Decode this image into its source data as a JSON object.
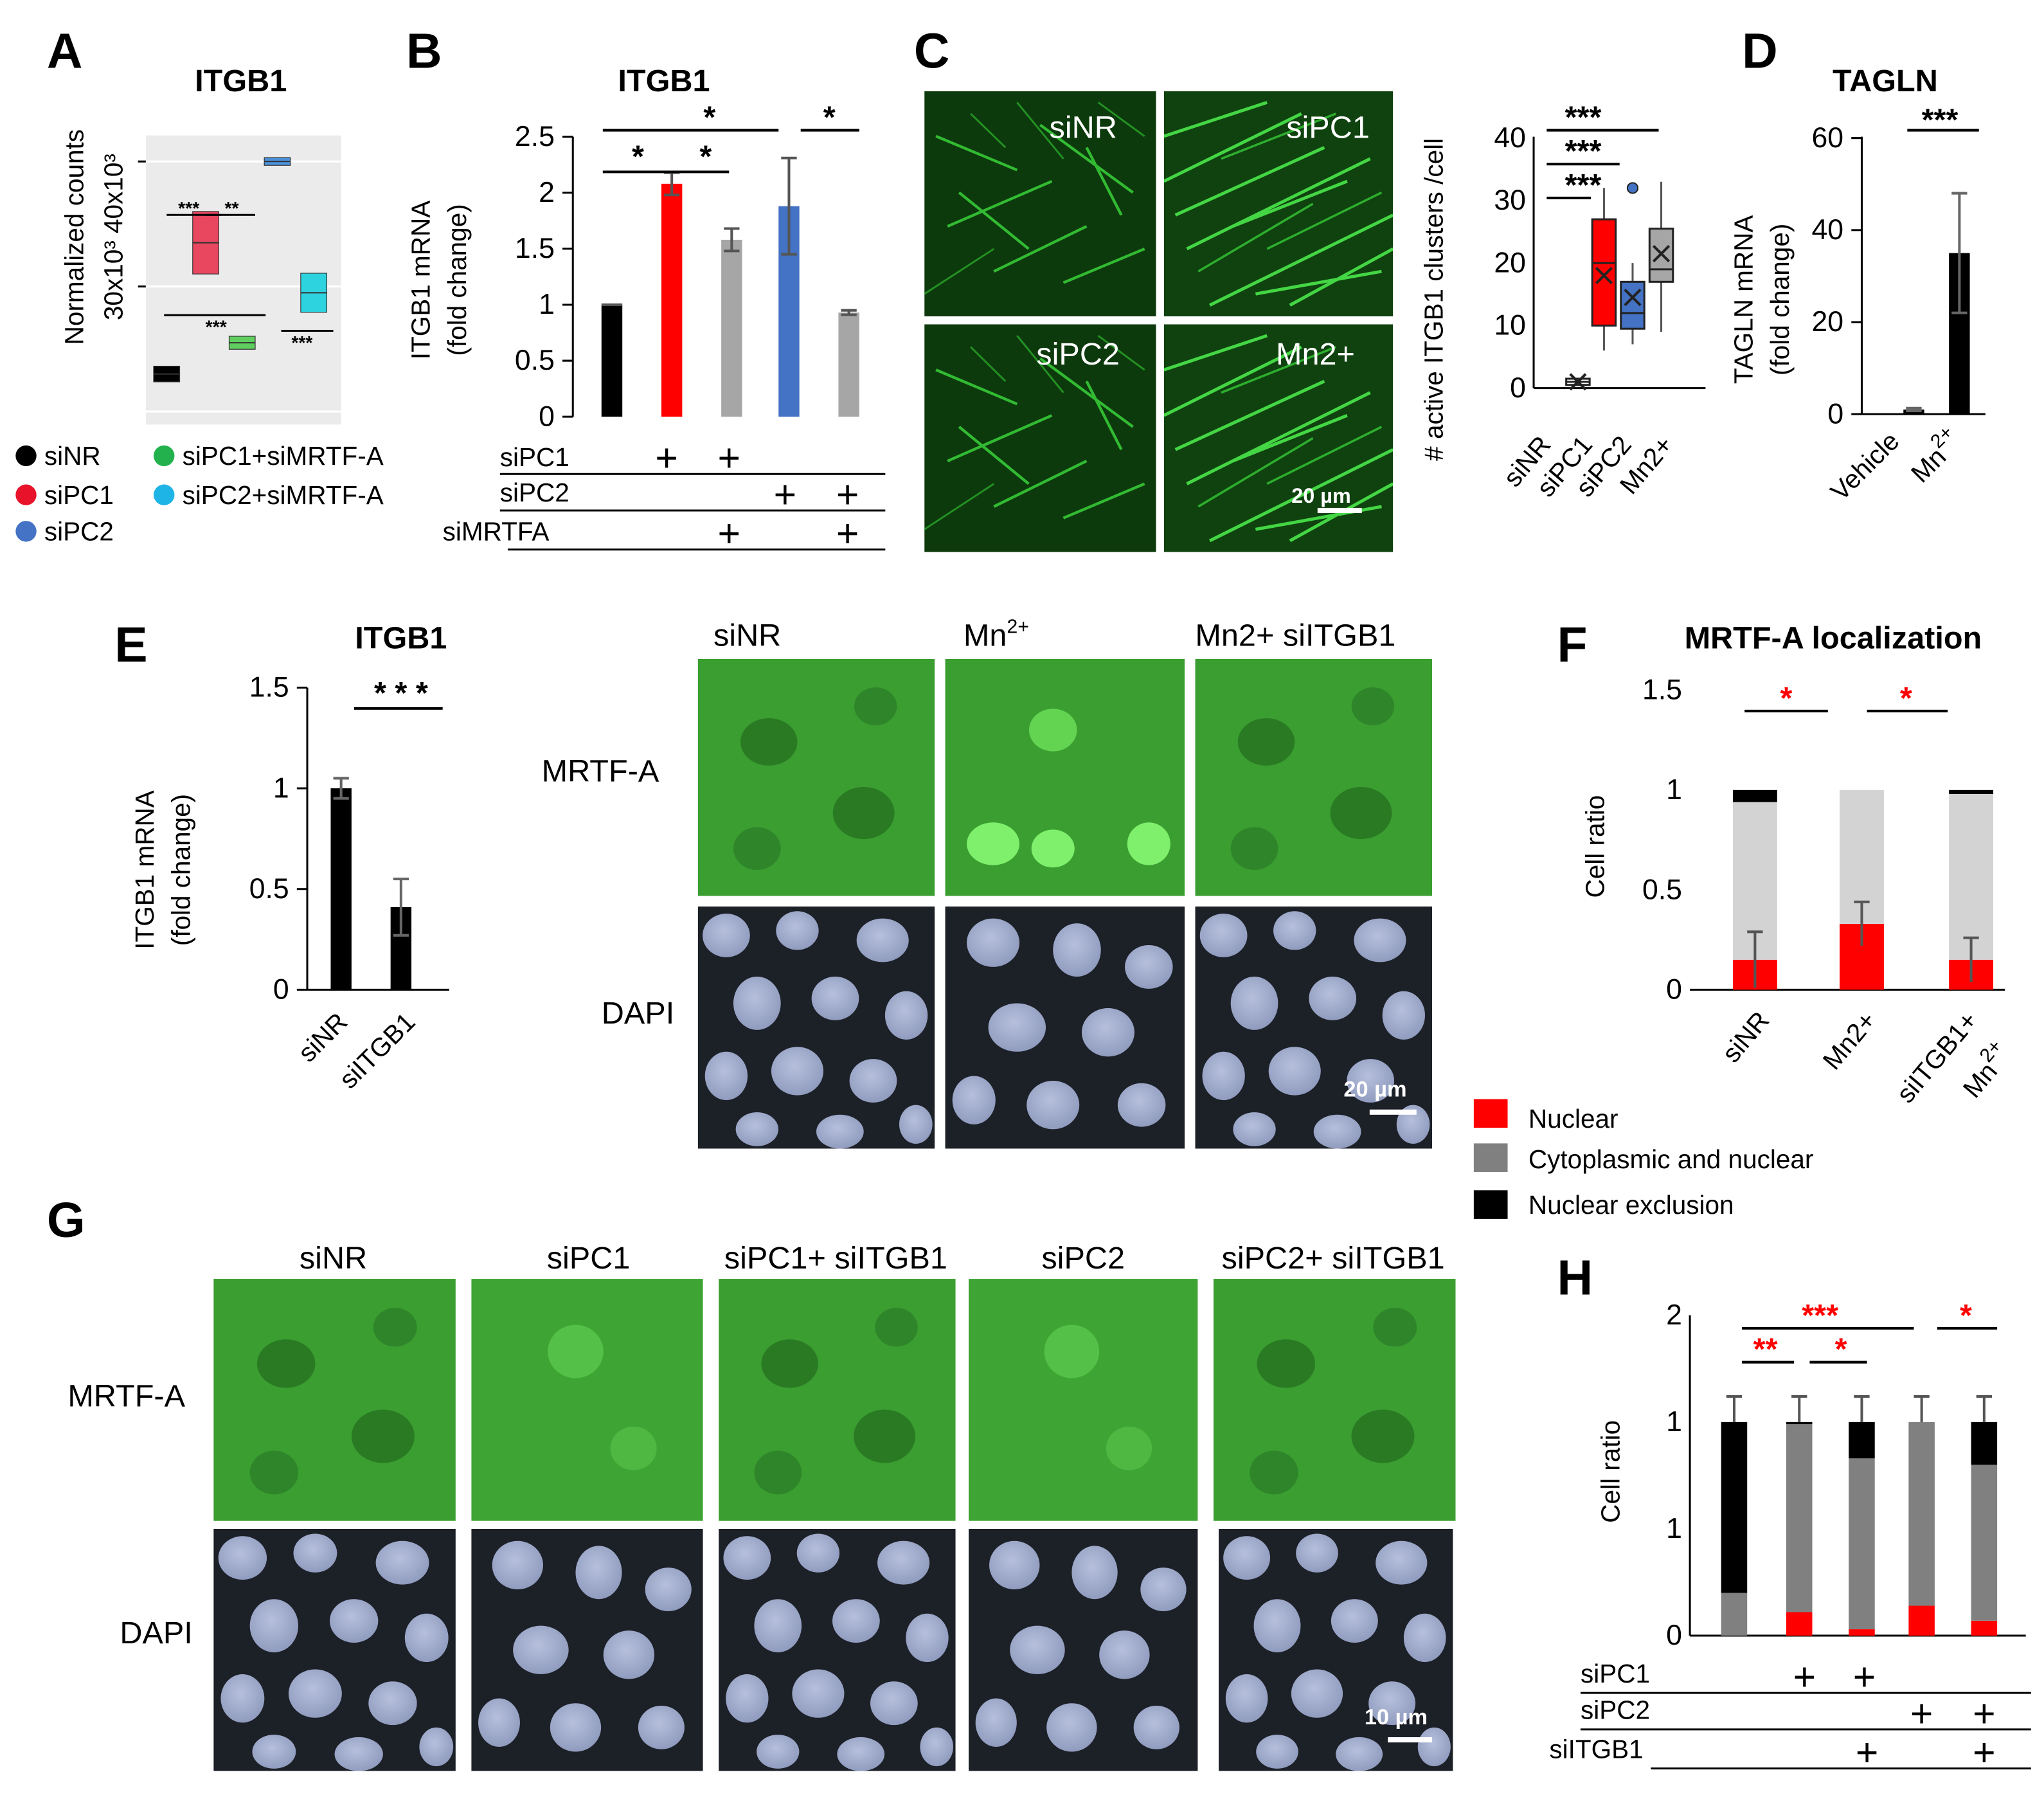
{
  "panel_labels": {
    "a": "A",
    "b": "B",
    "c": "C",
    "d": "D",
    "e": "E",
    "f": "F",
    "g": "G",
    "h": "H"
  },
  "panelA": {
    "title": "ITGB1",
    "ylabel_line1": "Normalized counts",
    "ylabel_line2": "30x10³ 40x10³",
    "stars": [
      "***",
      "**",
      "***",
      "***"
    ],
    "legend": [
      {
        "label": "siNR",
        "color": "#000000"
      },
      {
        "label": "siPC1",
        "color": "#e8132a"
      },
      {
        "label": "siPC2",
        "color": "#4472c4"
      },
      {
        "label": "siPC1+siMRTF-A",
        "color": "#22b14c"
      },
      {
        "label": "siPC2+siMRTF-A",
        "color": "#1fb4e6"
      }
    ]
  },
  "panelB": {
    "title": "ITGB1",
    "ylabel_line1": "ITGB1 mRNA",
    "ylabel_line2": "(fold change)",
    "ticks": [
      "0",
      "0.5",
      "1",
      "1.5",
      "2",
      "2.5"
    ],
    "stars": [
      "*",
      "*",
      "*",
      "*"
    ],
    "rows": [
      "siPC1",
      "siPC2",
      "siMRTFA"
    ],
    "plus": "+"
  },
  "panelC": {
    "images": [
      "siNR",
      "siPC1",
      "siPC2",
      "Mn2+"
    ],
    "scale": "20 µm",
    "ylabel": "# active ITGB1 clusters /cell",
    "ticks": [
      "0",
      "10",
      "20",
      "30",
      "40"
    ],
    "stars": [
      "***",
      "***",
      "***"
    ],
    "categories": [
      "siNR",
      "siPC1",
      "siPC2",
      "Mn2+"
    ]
  },
  "panelD": {
    "title": "TAGLN",
    "ylabel_line1": "TAGLN mRNA",
    "ylabel_line2": "(fold change)",
    "ticks": [
      "0",
      "20",
      "40",
      "60"
    ],
    "star": "***",
    "categories": [
      "Vehicle",
      "Mn"
    ],
    "superscript": "2+"
  },
  "panelE": {
    "title": "ITGB1",
    "ylabel_line1": "ITGB1 mRNA",
    "ylabel_line2": "(fold change)",
    "ticks": [
      "0",
      "0.5",
      "1",
      "1.5"
    ],
    "star": "* * *",
    "categories": [
      "siNR",
      "siITGB1"
    ],
    "col_headers": [
      "siNR",
      "Mn",
      "Mn2+ siITGB1"
    ],
    "superscript": "2+",
    "row_labels": [
      "MRTF-A",
      "DAPI"
    ],
    "scale": "20 µm"
  },
  "panelF": {
    "title": "MRTF-A localization",
    "ylabel": "Cell ratio",
    "ticks": [
      "0",
      "0.5",
      "1",
      "1.5"
    ],
    "stars": [
      "*",
      "*"
    ],
    "categories": [
      "siNR",
      "Mn2+",
      "siITGB1+",
      "Mn"
    ],
    "superscript": "2+",
    "legend": [
      {
        "label": "Nuclear",
        "color": "#ff0000"
      },
      {
        "label": "Cytoplasmic and nuclear",
        "color": "#808080"
      },
      {
        "label": "Nuclear exclusion",
        "color": "#000000"
      }
    ]
  },
  "panelG": {
    "col_headers": [
      "siNR",
      "siPC1",
      "siPC1+ siITGB1",
      "siPC2",
      "siPC2+ siITGB1"
    ],
    "row_labels": [
      "MRTF-A",
      "DAPI"
    ],
    "scale": "10 µm"
  },
  "panelH": {
    "ylabel": "Cell ratio",
    "ticks": [
      "0",
      "1",
      "1",
      "2"
    ],
    "stars": [
      "***",
      "**",
      "*",
      "*"
    ],
    "rows": [
      "siPC1",
      "siPC2",
      "siITGB1"
    ],
    "plus": "+"
  },
  "chart_data": [
    {
      "panel": "A",
      "type": "box",
      "title": "ITGB1",
      "ylabel": "Normalized counts",
      "series": [
        {
          "name": "siNR",
          "median": 23000
        },
        {
          "name": "siPC1",
          "median": 33500
        },
        {
          "name": "siPC1+siMRTF-A",
          "median": 25500
        },
        {
          "name": "siPC2",
          "median": 40000
        },
        {
          "name": "siPC2+siMRTF-A",
          "median": 29500
        }
      ]
    },
    {
      "panel": "B",
      "type": "bar",
      "title": "ITGB1",
      "ylabel": "ITGB1 mRNA (fold change)",
      "ylim": [
        0,
        2.5
      ],
      "categories": [
        "siNR",
        "siPC1",
        "siPC1+siMRTFA",
        "siPC2",
        "siPC2+siMRTFA"
      ],
      "values": [
        1.0,
        2.08,
        1.58,
        1.88,
        0.93
      ],
      "errors": [
        0.0,
        0.1,
        0.1,
        0.43,
        0.02
      ],
      "colors": [
        "#000000",
        "#ff0000",
        "#a6a6a6",
        "#4472c4",
        "#a6a6a6"
      ]
    },
    {
      "panel": "C",
      "type": "box",
      "ylabel": "# active ITGB1 clusters /cell",
      "ylim": [
        0,
        40
      ],
      "categories": [
        "siNR",
        "siPC1",
        "siPC2",
        "Mn2+"
      ],
      "q1": [
        0.5,
        10,
        9.5,
        17
      ],
      "median": [
        1,
        20,
        12,
        19
      ],
      "q3": [
        1.5,
        27,
        17,
        25.5
      ],
      "whisker_low": [
        0.5,
        6,
        7,
        9
      ],
      "whisker_high": [
        1.5,
        32,
        20,
        33
      ],
      "mean": [
        1,
        18,
        14.5,
        21.5
      ]
    },
    {
      "panel": "D",
      "type": "bar",
      "title": "TAGLN",
      "ylabel": "TAGLN mRNA (fold change)",
      "ylim": [
        0,
        60
      ],
      "categories": [
        "Vehicle",
        "Mn2+"
      ],
      "values": [
        1,
        35
      ],
      "errors": [
        0.3,
        13
      ]
    },
    {
      "panel": "E",
      "type": "bar",
      "title": "ITGB1",
      "ylabel": "ITGB1 mRNA (fold change)",
      "ylim": [
        0,
        1.5
      ],
      "categories": [
        "siNR",
        "siITGB1"
      ],
      "values": [
        1.0,
        0.41
      ],
      "errors": [
        0.05,
        0.14
      ]
    },
    {
      "panel": "F",
      "type": "bar",
      "title": "MRTF-A localization",
      "ylabel": "Cell ratio",
      "ylim": [
        0,
        1.5
      ],
      "categories": [
        "siNR",
        "Mn2+",
        "siITGB1+ Mn2+"
      ],
      "series": [
        {
          "name": "Nuclear",
          "values": [
            0.15,
            0.33,
            0.15
          ]
        },
        {
          "name": "Cytoplasmic and nuclear",
          "values": [
            0.79,
            0.67,
            0.83
          ]
        },
        {
          "name": "Nuclear exclusion",
          "values": [
            0.06,
            0.0,
            0.02
          ]
        }
      ]
    },
    {
      "panel": "H",
      "type": "bar",
      "ylabel": "Cell ratio",
      "categories": [
        "siNR",
        "siPC1",
        "siPC1+siITGB1",
        "siPC2",
        "siPC2+siITGB1"
      ],
      "series": [
        {
          "name": "Nuclear",
          "values": [
            0.0,
            0.11,
            0.03,
            0.14,
            0.07
          ]
        },
        {
          "name": "Cytoplasmic and nuclear",
          "values": [
            0.2,
            0.88,
            0.8,
            0.86,
            0.73
          ]
        },
        {
          "name": "Nuclear exclusion",
          "values": [
            0.8,
            0.01,
            0.17,
            0.0,
            0.2
          ]
        }
      ]
    }
  ]
}
